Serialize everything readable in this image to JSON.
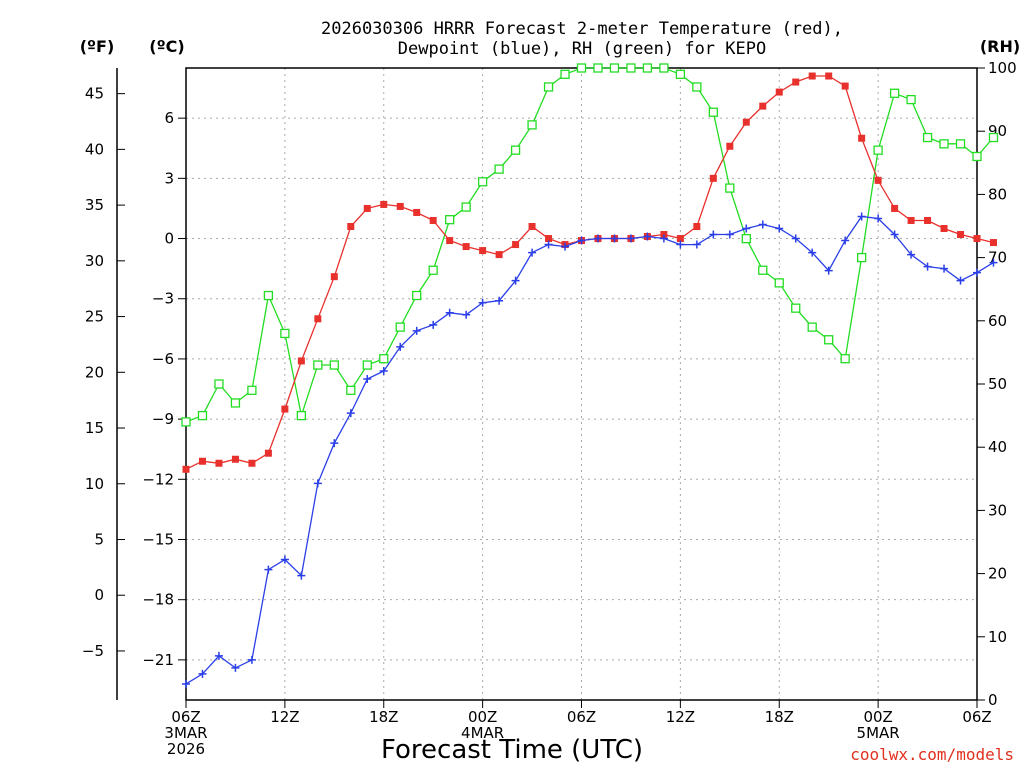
{
  "chart_data": {
    "type": "line",
    "title_lines": [
      "2026030306 HRRR Forecast 2-meter Temperature (red),",
      "Dewpoint (blue), RH (green) for KEPO"
    ],
    "units": {
      "far_left": "(ºF)",
      "left": "(ºC)",
      "right": "(RH)"
    },
    "xlabel": "Forecast Time (UTC)",
    "credit": "coolwx.com/models",
    "x_ticks": [
      {
        "hour": 0,
        "lines": [
          "06Z",
          "3MAR",
          "2026"
        ]
      },
      {
        "hour": 6,
        "lines": [
          "12Z"
        ]
      },
      {
        "hour": 12,
        "lines": [
          "18Z"
        ]
      },
      {
        "hour": 18,
        "lines": [
          "00Z",
          "4MAR"
        ]
      },
      {
        "hour": 24,
        "lines": [
          "06Z"
        ]
      },
      {
        "hour": 30,
        "lines": [
          "12Z"
        ]
      },
      {
        "hour": 36,
        "lines": [
          "18Z"
        ]
      },
      {
        "hour": 42,
        "lines": [
          "00Z",
          "5MAR"
        ]
      },
      {
        "hour": 48,
        "lines": [
          "06Z"
        ]
      }
    ],
    "xlim": [
      0,
      48
    ],
    "ylim_c": [
      -23,
      8.5
    ],
    "ylim_rh": [
      0,
      100
    ],
    "yticks_f": [
      45,
      40,
      35,
      30,
      25,
      20,
      15,
      10,
      5,
      0,
      -5
    ],
    "yticks_c": [
      6,
      3,
      0,
      -3,
      -6,
      -9,
      -12,
      -15,
      -18,
      -21
    ],
    "yticks_rh": [
      100,
      90,
      80,
      70,
      60,
      50,
      40,
      30,
      20,
      10,
      0
    ],
    "series": [
      {
        "name": "Temperature",
        "unit": "C",
        "color": "#e8302c",
        "marker": "filled-square",
        "values": [
          -11.5,
          -11.1,
          -11.2,
          -11.0,
          -11.2,
          -10.7,
          -8.5,
          -6.1,
          -4.0,
          -1.9,
          0.6,
          1.5,
          1.7,
          1.6,
          1.3,
          0.9,
          -0.1,
          -0.4,
          -0.6,
          -0.8,
          -0.3,
          0.6,
          0.0,
          -0.3,
          -0.1,
          0.0,
          0.0,
          0.0,
          0.1,
          0.2,
          0.0,
          0.6,
          3.0,
          4.6,
          5.8,
          6.6,
          7.3,
          7.8,
          8.1,
          8.1,
          7.6,
          5.0,
          2.9,
          1.5,
          0.9,
          0.9,
          0.5,
          0.2,
          0.0,
          -0.2
        ]
      },
      {
        "name": "Dewpoint",
        "unit": "C",
        "color": "#2a3fe8",
        "marker": "plus",
        "values": [
          -22.2,
          -21.7,
          -20.8,
          -21.4,
          -21.0,
          -16.5,
          -16.0,
          -16.8,
          -12.2,
          -10.2,
          -8.7,
          -7.0,
          -6.6,
          -5.4,
          -4.6,
          -4.3,
          -3.7,
          -3.8,
          -3.2,
          -3.1,
          -2.1,
          -0.7,
          -0.3,
          -0.4,
          -0.1,
          0.0,
          0.0,
          0.0,
          0.1,
          0.0,
          -0.3,
          -0.3,
          0.2,
          0.2,
          0.5,
          0.7,
          0.5,
          0.0,
          -0.7,
          -1.6,
          -0.1,
          1.1,
          1.0,
          0.2,
          -0.8,
          -1.4,
          -1.5,
          -2.1,
          -1.7,
          -1.2
        ]
      },
      {
        "name": "RH",
        "unit": "%",
        "color": "#22dd22",
        "marker": "open-square",
        "values": [
          44,
          45,
          50,
          47,
          49,
          64,
          58,
          45,
          53,
          53,
          49,
          53,
          54,
          59,
          64,
          68,
          76,
          78,
          82,
          84,
          87,
          91,
          97,
          99,
          100,
          100,
          100,
          100,
          100,
          100,
          99,
          97,
          93,
          81,
          73,
          68,
          66,
          62,
          59,
          57,
          54,
          70,
          87,
          96,
          95,
          89,
          88,
          88,
          86,
          89
        ]
      }
    ]
  }
}
